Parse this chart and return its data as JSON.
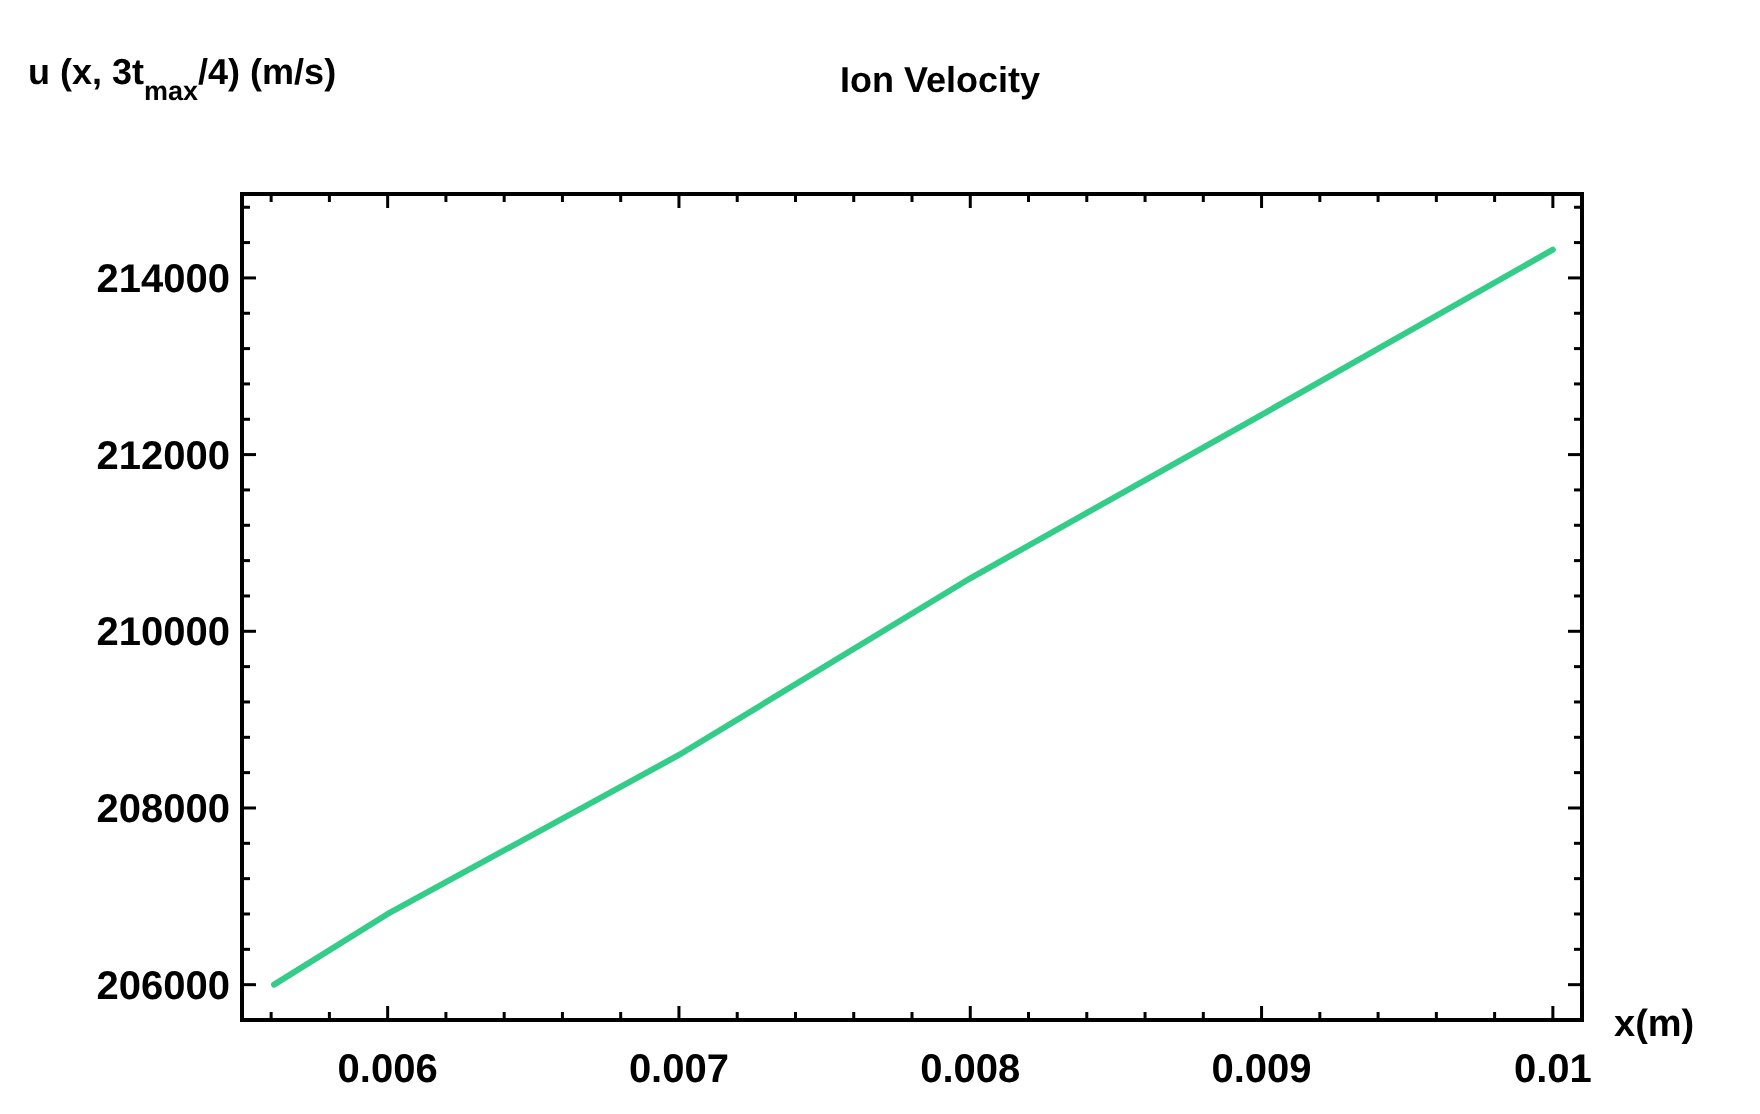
{
  "chart_data": {
    "type": "line",
    "title": "Ion Velocity",
    "ylabel": "u (x, 3t$_{max}$/4) (m/s)",
    "xlabel": "x(m)",
    "x": [
      0.00561,
      0.006,
      0.007,
      0.008,
      0.009,
      0.01
    ],
    "series": [
      {
        "color": "#33cc88",
        "values": [
          206000,
          206800,
          208600,
          210600,
          212450,
          214320
        ]
      }
    ],
    "xlim": [
      0.0055,
      0.0101
    ],
    "ylim": [
      205600,
      214950
    ],
    "xticks": [
      {
        "value": 0.0056,
        "label": null
      },
      {
        "value": 0.0058,
        "label": null
      },
      0.006,
      {
        "value": 0.0062,
        "label": null
      },
      {
        "value": 0.0064,
        "label": null
      },
      {
        "value": 0.0066,
        "label": null
      },
      {
        "value": 0.0068,
        "label": null
      },
      0.007,
      {
        "value": 0.0072,
        "label": null
      },
      {
        "value": 0.0074,
        "label": null
      },
      {
        "value": 0.0076,
        "label": null
      },
      {
        "value": 0.0078,
        "label": null
      },
      0.008,
      {
        "value": 0.0082,
        "label": null
      },
      {
        "value": 0.0084,
        "label": null
      },
      {
        "value": 0.0086,
        "label": null
      },
      {
        "value": 0.0088,
        "label": null
      },
      0.009,
      {
        "value": 0.0092,
        "label": null
      },
      {
        "value": 0.0094,
        "label": null
      },
      {
        "value": 0.0096,
        "label": null
      },
      {
        "value": 0.0098,
        "label": null
      },
      0.01
    ],
    "yticks": [
      206000,
      {
        "value": 206400,
        "label": null
      },
      {
        "value": 206800,
        "label": null
      },
      {
        "value": 207200,
        "label": null
      },
      {
        "value": 207600,
        "label": null
      },
      208000,
      {
        "value": 208400,
        "label": null
      },
      {
        "value": 208800,
        "label": null
      },
      {
        "value": 209200,
        "label": null
      },
      {
        "value": 209600,
        "label": null
      },
      210000,
      {
        "value": 210400,
        "label": null
      },
      {
        "value": 210800,
        "label": null
      },
      {
        "value": 211200,
        "label": null
      },
      {
        "value": 211600,
        "label": null
      },
      212000,
      {
        "value": 212400,
        "label": null
      },
      {
        "value": 212800,
        "label": null
      },
      {
        "value": 213200,
        "label": null
      },
      {
        "value": 213600,
        "label": null
      },
      214000,
      {
        "value": 214400,
        "label": null
      },
      {
        "value": 214800,
        "label": null
      }
    ],
    "grid": false,
    "line_style": "solid",
    "marker": "none"
  }
}
